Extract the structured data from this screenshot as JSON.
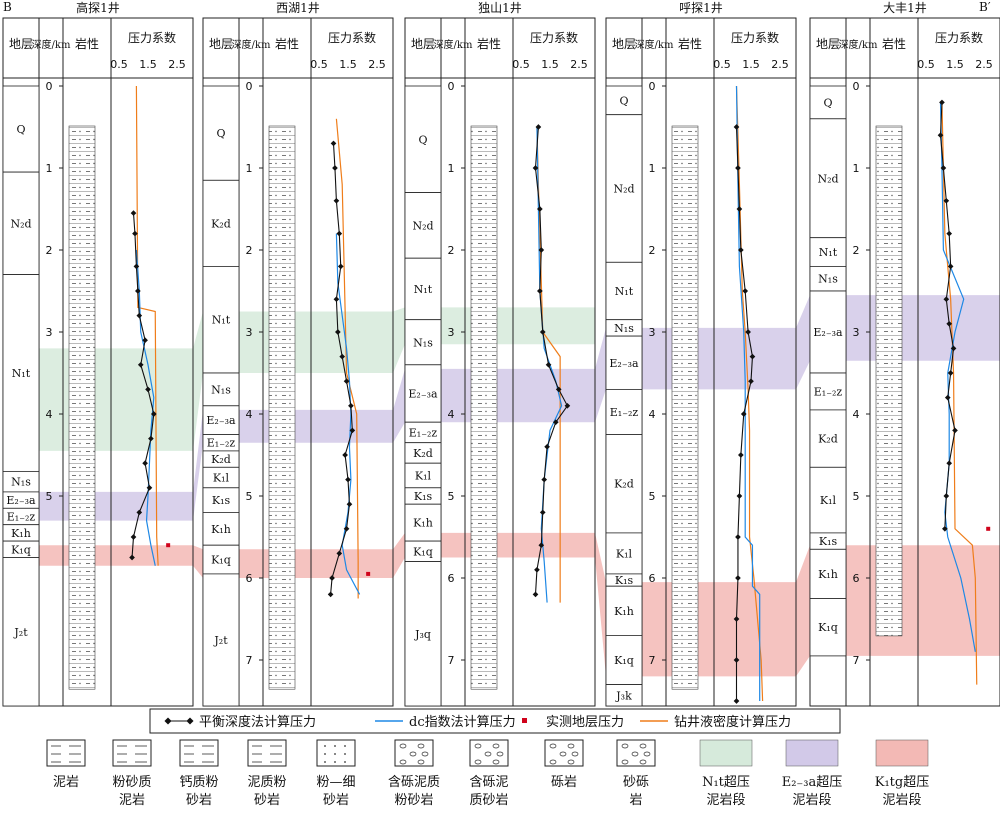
{
  "section_labels": {
    "left": "B",
    "right": "B′"
  },
  "column_headers": {
    "stratum": "地层",
    "depth": "深度/km",
    "lithology": "岩性",
    "pressure": "压力系数",
    "pressure_ticks": [
      "0.5",
      "1.5",
      "2.5"
    ]
  },
  "wells": [
    {
      "name": "高探1井",
      "strata": [
        {
          "label": "Q",
          "top": 0,
          "bottom": 1.05
        },
        {
          "label": "N₂d",
          "top": 1.05,
          "bottom": 2.3
        },
        {
          "label": "N₁t",
          "top": 2.3,
          "bottom": 4.7
        },
        {
          "label": "N₁s",
          "top": 4.7,
          "bottom": 4.95
        },
        {
          "label": "E₂₋₃a",
          "top": 4.95,
          "bottom": 5.15
        },
        {
          "label": "E₁₋₂z",
          "top": 5.15,
          "bottom": 5.35
        },
        {
          "label": "K₁h",
          "top": 5.35,
          "bottom": 5.55
        },
        {
          "label": "K₁q",
          "top": 5.55,
          "bottom": 5.75
        },
        {
          "label": "J₂t",
          "top": 5.75,
          "bottom": 7.6
        }
      ],
      "depth_ticks": [
        "0",
        "1",
        "2",
        "3",
        "4",
        "5"
      ]
    },
    {
      "name": "西湖1井",
      "strata": [
        {
          "label": "Q",
          "top": 0,
          "bottom": 1.15
        },
        {
          "label": "K₂d",
          "top": 1.15,
          "bottom": 2.2
        },
        {
          "label": "N₁t",
          "top": 2.2,
          "bottom": 3.5
        },
        {
          "label": "N₁s",
          "top": 3.5,
          "bottom": 3.9
        },
        {
          "label": "E₂₋₃a",
          "top": 3.9,
          "bottom": 4.25
        },
        {
          "label": "E₁₋₂z",
          "top": 4.25,
          "bottom": 4.45
        },
        {
          "label": "K₂d",
          "top": 4.45,
          "bottom": 4.65
        },
        {
          "label": "K₁l",
          "top": 4.65,
          "bottom": 4.9
        },
        {
          "label": "K₁s",
          "top": 4.9,
          "bottom": 5.2
        },
        {
          "label": "K₁h",
          "top": 5.2,
          "bottom": 5.6
        },
        {
          "label": "K₁q",
          "top": 5.6,
          "bottom": 5.95
        },
        {
          "label": "J₂t",
          "top": 5.95,
          "bottom": 7.6
        }
      ],
      "depth_ticks": [
        "0",
        "1",
        "2",
        "3",
        "4",
        "5",
        "6",
        "7"
      ]
    },
    {
      "name": "独山1井",
      "strata": [
        {
          "label": "Q",
          "top": 0,
          "bottom": 1.3
        },
        {
          "label": "N₂d",
          "top": 1.3,
          "bottom": 2.1
        },
        {
          "label": "N₁t",
          "top": 2.1,
          "bottom": 2.85
        },
        {
          "label": "N₁s",
          "top": 2.85,
          "bottom": 3.4
        },
        {
          "label": "E₂₋₃a",
          "top": 3.4,
          "bottom": 4.1
        },
        {
          "label": "E₁₋₂z",
          "top": 4.1,
          "bottom": 4.35
        },
        {
          "label": "K₂d",
          "top": 4.35,
          "bottom": 4.6
        },
        {
          "label": "K₁l",
          "top": 4.6,
          "bottom": 4.9
        },
        {
          "label": "K₁s",
          "top": 4.9,
          "bottom": 5.1
        },
        {
          "label": "K₁h",
          "top": 5.1,
          "bottom": 5.55
        },
        {
          "label": "K₁q",
          "top": 5.55,
          "bottom": 5.8
        },
        {
          "label": "J₃q",
          "top": 5.8,
          "bottom": 7.6
        }
      ],
      "depth_ticks": [
        "0",
        "1",
        "2",
        "3",
        "4",
        "5",
        "6",
        "7"
      ]
    },
    {
      "name": "呼探1井",
      "strata": [
        {
          "label": "Q",
          "top": 0,
          "bottom": 0.35
        },
        {
          "label": "N₂d",
          "top": 0.35,
          "bottom": 2.15
        },
        {
          "label": "N₁t",
          "top": 2.15,
          "bottom": 2.85
        },
        {
          "label": "N₁s",
          "top": 2.85,
          "bottom": 3.05
        },
        {
          "label": "E₂₋₃a",
          "top": 3.05,
          "bottom": 3.7
        },
        {
          "label": "E₁₋₂z",
          "top": 3.7,
          "bottom": 4.25
        },
        {
          "label": "K₂d",
          "top": 4.25,
          "bottom": 5.45
        },
        {
          "label": "K₁l",
          "top": 5.45,
          "bottom": 5.95
        },
        {
          "label": "K₁s",
          "top": 5.95,
          "bottom": 6.1
        },
        {
          "label": "K₁h",
          "top": 6.1,
          "bottom": 6.7
        },
        {
          "label": "K₁q",
          "top": 6.7,
          "bottom": 7.3
        },
        {
          "label": "J₃k",
          "top": 7.3,
          "bottom": 7.6
        }
      ],
      "depth_ticks": [
        "0",
        "1",
        "2",
        "3",
        "4",
        "5",
        "6",
        "7"
      ]
    },
    {
      "name": "大丰1井",
      "strata": [
        {
          "label": "Q",
          "top": 0,
          "bottom": 0.4
        },
        {
          "label": "N₂d",
          "top": 0.4,
          "bottom": 1.85
        },
        {
          "label": "N₁t",
          "top": 1.85,
          "bottom": 2.2
        },
        {
          "label": "N₁s",
          "top": 2.2,
          "bottom": 2.5
        },
        {
          "label": "E₂₋₃a",
          "top": 2.5,
          "bottom": 3.5
        },
        {
          "label": "E₁₋₂z",
          "top": 3.5,
          "bottom": 3.95
        },
        {
          "label": "K₂d",
          "top": 3.95,
          "bottom": 4.65
        },
        {
          "label": "K₁l",
          "top": 4.65,
          "bottom": 5.45
        },
        {
          "label": "K₁s",
          "top": 5.45,
          "bottom": 5.65
        },
        {
          "label": "K₁h",
          "top": 5.65,
          "bottom": 6.25
        },
        {
          "label": "K₁q",
          "top": 6.25,
          "bottom": 6.95
        }
      ],
      "depth_ticks": [
        "0",
        "1",
        "2",
        "3",
        "4",
        "5",
        "6",
        "7"
      ]
    }
  ],
  "curve_legend": [
    {
      "key": "balance",
      "label": "平衡深度法计算压力",
      "color": "#111111"
    },
    {
      "key": "dc",
      "label": "dc指数法计算压力",
      "color": "#1e88e5"
    },
    {
      "key": "measured",
      "label": "实测地层压力",
      "color": "#d0021b"
    },
    {
      "key": "mud",
      "label": "钻井液密度计算压力",
      "color": "#ef7d1a"
    }
  ],
  "litho_legend": [
    {
      "label": "泥岩",
      "pattern": "dash"
    },
    {
      "label": "粉砂质泥岩",
      "pattern": "dashdot"
    },
    {
      "label": "钙质粉砂岩",
      "pattern": "ca"
    },
    {
      "label": "泥质粉砂岩",
      "pattern": "dotdash"
    },
    {
      "label": "粉—细砂岩",
      "pattern": "dots"
    },
    {
      "label": "含砾泥质粉砂岩",
      "pattern": "gravel-dash"
    },
    {
      "label": "含砾泥质砂岩",
      "pattern": "gravel-dot"
    },
    {
      "label": "砾岩",
      "pattern": "gravel"
    },
    {
      "label": "砂砾岩",
      "pattern": "gravel-sand"
    }
  ],
  "zone_legend": [
    {
      "label": "N₁t超压泥岩段",
      "color": "#d6eadb"
    },
    {
      "label": "E₂₋₃a超压泥岩段",
      "color": "#d2c9e8"
    },
    {
      "label": "K₁tg超压泥岩段",
      "color": "#f3b9b5"
    }
  ],
  "overpressure_zones": [
    {
      "name": "N₁t",
      "color": "#d6eadb",
      "tops": [
        3.2,
        2.75,
        2.7,
        null,
        null
      ],
      "bottoms": [
        4.45,
        3.5,
        3.15,
        null,
        null
      ]
    },
    {
      "name": "E₂₋₃a",
      "color": "#d2c9e8",
      "tops": [
        4.95,
        3.95,
        3.45,
        2.95,
        2.55
      ],
      "bottoms": [
        5.3,
        4.35,
        4.1,
        3.7,
        3.35
      ]
    },
    {
      "name": "K₁tg",
      "color": "#f3b9b5",
      "tops": [
        5.6,
        5.65,
        5.45,
        6.05,
        5.6
      ],
      "bottoms": [
        5.85,
        6.0,
        5.75,
        7.2,
        6.95
      ]
    }
  ],
  "chart_data": {
    "type": "line",
    "x_axis": "压力系数",
    "xlim": [
      0.5,
      2.5
    ],
    "y_axis": "深度/km",
    "series_keys": [
      "balance",
      "dc",
      "mud",
      "measured"
    ],
    "wells": [
      {
        "name": "高探1井",
        "balance": {
          "depth": [
            1.55,
            1.8,
            2.2,
            2.5,
            2.8,
            3.1,
            3.4,
            3.7,
            4.0,
            4.3,
            4.6,
            4.9,
            5.2,
            5.5,
            5.75
          ],
          "coef": [
            1.0,
            1.05,
            1.1,
            1.15,
            1.2,
            1.4,
            1.25,
            1.5,
            1.7,
            1.6,
            1.4,
            1.55,
            1.2,
            1.0,
            0.95
          ]
        },
        "dc": {
          "depth": [
            2.0,
            2.5,
            3.0,
            3.4,
            3.8,
            4.2,
            4.6,
            5.0,
            5.3,
            5.6,
            5.85
          ],
          "coef": [
            1.1,
            1.2,
            1.25,
            1.5,
            1.7,
            1.6,
            1.55,
            1.5,
            1.45,
            1.6,
            1.75
          ]
        },
        "mud": {
          "depth": [
            0.0,
            2.7,
            2.75,
            5.5,
            5.85
          ],
          "coef": [
            1.1,
            1.15,
            1.75,
            1.8,
            1.85
          ]
        },
        "measured": {
          "depth": [
            5.6
          ],
          "coef": [
            1.85
          ]
        }
      },
      {
        "name": "西湖1井",
        "balance": {
          "depth": [
            0.7,
            1.0,
            1.4,
            1.8,
            2.2,
            2.6,
            3.0,
            3.3,
            3.6,
            3.9,
            4.2,
            4.5,
            4.8,
            5.1,
            5.4,
            5.7,
            6.0,
            6.2
          ],
          "coef": [
            1.0,
            1.05,
            1.1,
            1.2,
            1.25,
            1.1,
            1.15,
            1.3,
            1.45,
            1.6,
            1.65,
            1.4,
            1.5,
            1.55,
            1.45,
            1.2,
            0.95,
            0.9
          ]
        },
        "dc": {
          "depth": [
            1.8,
            2.4,
            2.8,
            3.2,
            3.6,
            4.0,
            4.4,
            4.8,
            5.2,
            5.6,
            5.9,
            6.2
          ],
          "coef": [
            1.1,
            1.15,
            1.3,
            1.45,
            1.55,
            1.6,
            1.55,
            1.6,
            1.5,
            1.3,
            1.45,
            1.9
          ]
        },
        "mud": {
          "depth": [
            0.4,
            1.2,
            3.5,
            4.0,
            5.8,
            6.25
          ],
          "coef": [
            1.1,
            1.3,
            1.45,
            1.8,
            1.85,
            1.85
          ]
        },
        "measured": {
          "depth": [
            5.95
          ],
          "coef": [
            1.85
          ]
        }
      },
      {
        "name": "独山1井",
        "balance": {
          "depth": [
            0.5,
            1.0,
            1.5,
            2.0,
            2.5,
            3.0,
            3.4,
            3.7,
            3.9,
            4.1,
            4.4,
            4.8,
            5.2,
            5.6,
            5.9,
            6.2
          ],
          "coef": [
            1.1,
            1.0,
            1.15,
            1.2,
            1.15,
            1.25,
            1.45,
            1.8,
            2.1,
            1.7,
            1.4,
            1.3,
            1.25,
            1.2,
            1.05,
            1.0
          ]
        },
        "dc": {
          "depth": [
            0.5,
            1.5,
            2.5,
            3.2,
            3.6,
            3.9,
            4.2,
            4.8,
            5.4,
            5.8,
            6.3
          ],
          "coef": [
            1.05,
            1.1,
            1.15,
            1.3,
            1.7,
            1.9,
            1.5,
            1.3,
            1.2,
            1.3,
            1.4
          ]
        },
        "mud": {
          "depth": [
            0.5,
            1.2,
            3.0,
            3.3,
            3.6,
            6.3
          ],
          "coef": [
            1.05,
            1.1,
            1.25,
            1.85,
            1.85,
            1.85
          ]
        },
        "measured": {
          "depth": [],
          "coef": []
        }
      },
      {
        "name": "呼探1井",
        "balance": {
          "depth": [
            0.5,
            1.0,
            1.5,
            2.0,
            2.5,
            3.0,
            3.3,
            3.6,
            4.0,
            4.5,
            5.0,
            5.5,
            6.0,
            6.5,
            7.0,
            7.5
          ],
          "coef": [
            1.0,
            1.05,
            1.1,
            1.15,
            1.3,
            1.4,
            1.55,
            1.5,
            1.25,
            1.15,
            1.1,
            1.05,
            1.05,
            1.0,
            1.0,
            1.0
          ]
        },
        "dc": {
          "depth": [
            0,
            1.2,
            2.2,
            3.0,
            3.6,
            4.0,
            5.5,
            5.6,
            6.1,
            6.2,
            7.2,
            7.5
          ],
          "coef": [
            1.0,
            1.05,
            1.1,
            1.25,
            1.3,
            1.3,
            1.3,
            1.55,
            1.55,
            1.8,
            1.8,
            1.8
          ]
        },
        "mud": {
          "depth": [
            0,
            1.2,
            2.5,
            3.0,
            3.7,
            4.2,
            5.5,
            6.0,
            7.0,
            7.5
          ],
          "coef": [
            1.0,
            1.1,
            1.2,
            1.3,
            1.4,
            1.45,
            1.45,
            1.6,
            1.85,
            1.9
          ]
        },
        "measured": {
          "depth": [],
          "coef": []
        }
      },
      {
        "name": "大丰1井",
        "balance": {
          "depth": [
            0.2,
            0.6,
            1.0,
            1.4,
            1.8,
            2.2,
            2.6,
            2.9,
            3.2,
            3.5,
            3.8,
            4.2,
            4.6,
            5.0,
            5.4
          ],
          "coef": [
            1.05,
            1.0,
            1.1,
            1.2,
            1.3,
            1.35,
            1.2,
            1.3,
            1.45,
            1.35,
            1.25,
            1.5,
            1.3,
            1.2,
            1.15
          ]
        },
        "dc": {
          "depth": [
            0.2,
            1.0,
            2.0,
            2.6,
            3.0,
            3.5,
            4.0,
            4.6,
            5.2,
            5.5,
            6.0,
            6.5,
            6.9
          ],
          "coef": [
            1.0,
            1.05,
            1.1,
            1.8,
            1.5,
            1.25,
            1.3,
            1.3,
            1.15,
            1.25,
            1.7,
            2.0,
            2.2
          ]
        },
        "mud": {
          "depth": [
            0.2,
            1.8,
            2.6,
            3.5,
            5.4,
            5.6,
            6.0,
            7.3
          ],
          "coef": [
            1.05,
            1.15,
            1.35,
            1.45,
            1.5,
            2.1,
            2.2,
            2.25
          ]
        },
        "measured": {
          "depth": [
            5.4
          ],
          "coef": [
            2.3
          ]
        }
      }
    ]
  }
}
